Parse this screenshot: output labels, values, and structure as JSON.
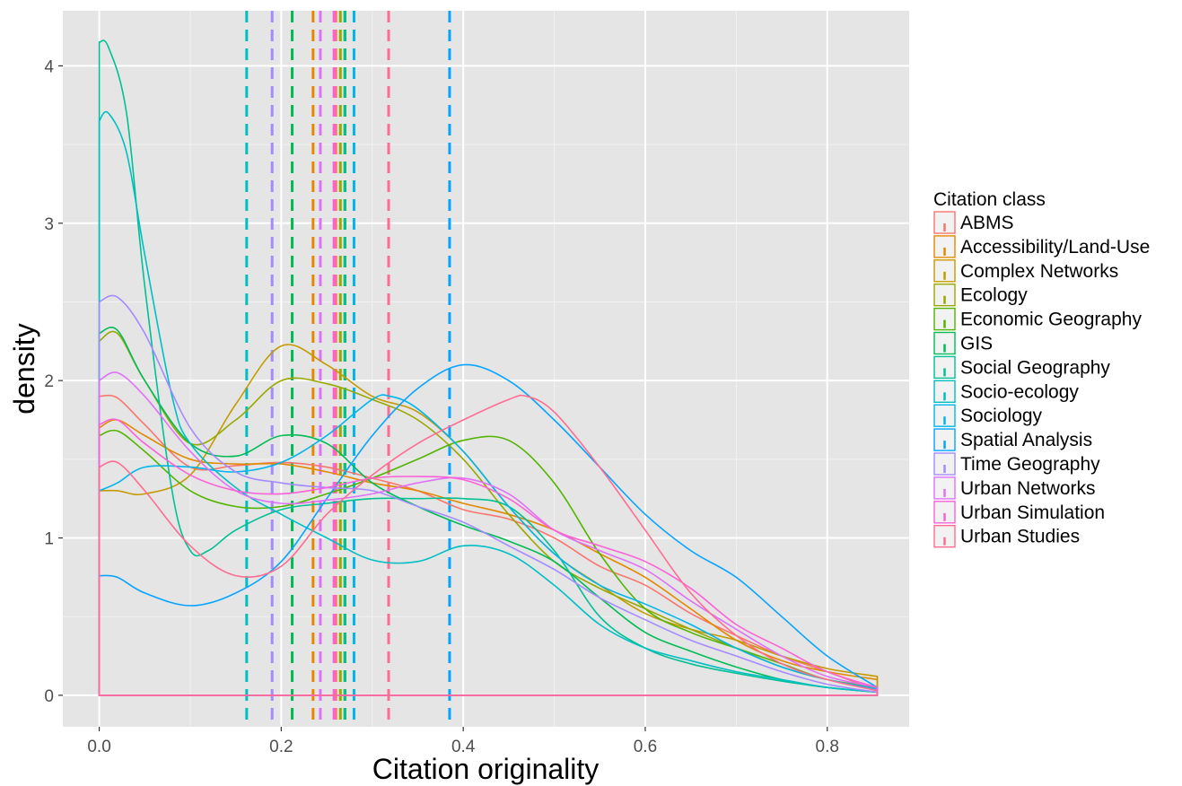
{
  "chart_data": {
    "type": "area",
    "kind": "density",
    "xlabel": "Citation originality",
    "ylabel": "density",
    "xlim": [
      -0.04,
      0.89
    ],
    "ylim": [
      -0.2,
      4.35
    ],
    "x_ticks": [
      {
        "value": 0.0,
        "label": "0.0"
      },
      {
        "value": 0.2,
        "label": "0.2"
      },
      {
        "value": 0.4,
        "label": "0.4"
      },
      {
        "value": 0.6,
        "label": "0.6"
      },
      {
        "value": 0.8,
        "label": "0.8"
      }
    ],
    "y_ticks": [
      {
        "value": 0,
        "label": "0"
      },
      {
        "value": 1,
        "label": "1"
      },
      {
        "value": 2,
        "label": "2"
      },
      {
        "value": 3,
        "label": "3"
      },
      {
        "value": 4,
        "label": "4"
      }
    ],
    "grid": true,
    "panel_background": "#e5e5e5",
    "legend": {
      "title": "Citation class",
      "position": "right"
    },
    "series": [
      {
        "name": "ABMS",
        "color": "#F8766D",
        "mean": 0.26,
        "points": [
          [
            0,
            1.9
          ],
          [
            0.02,
            1.89
          ],
          [
            0.05,
            1.72
          ],
          [
            0.1,
            1.45
          ],
          [
            0.15,
            1.46
          ],
          [
            0.2,
            1.48
          ],
          [
            0.25,
            1.45
          ],
          [
            0.3,
            1.38
          ],
          [
            0.35,
            1.3
          ],
          [
            0.4,
            1.18
          ],
          [
            0.45,
            1.12
          ],
          [
            0.5,
            1.0
          ],
          [
            0.55,
            0.82
          ],
          [
            0.6,
            0.7
          ],
          [
            0.65,
            0.52
          ],
          [
            0.7,
            0.38
          ],
          [
            0.75,
            0.25
          ],
          [
            0.8,
            0.15
          ],
          [
            0.855,
            0.03
          ]
        ]
      },
      {
        "name": "Accessibility/Land-Use",
        "color": "#E38900",
        "mean": 0.235,
        "points": [
          [
            0,
            1.7
          ],
          [
            0.02,
            1.75
          ],
          [
            0.05,
            1.65
          ],
          [
            0.1,
            1.5
          ],
          [
            0.15,
            1.47
          ],
          [
            0.2,
            1.47
          ],
          [
            0.25,
            1.42
          ],
          [
            0.3,
            1.35
          ],
          [
            0.35,
            1.3
          ],
          [
            0.4,
            1.22
          ],
          [
            0.45,
            1.15
          ],
          [
            0.5,
            1.05
          ],
          [
            0.55,
            0.9
          ],
          [
            0.6,
            0.75
          ],
          [
            0.65,
            0.55
          ],
          [
            0.7,
            0.35
          ],
          [
            0.75,
            0.22
          ],
          [
            0.8,
            0.15
          ],
          [
            0.855,
            0.1
          ]
        ]
      },
      {
        "name": "Complex Networks",
        "color": "#C49A00",
        "mean": 0.27,
        "points": [
          [
            0,
            1.3
          ],
          [
            0.02,
            1.3
          ],
          [
            0.05,
            1.28
          ],
          [
            0.1,
            1.4
          ],
          [
            0.15,
            1.85
          ],
          [
            0.2,
            2.22
          ],
          [
            0.25,
            2.1
          ],
          [
            0.3,
            1.9
          ],
          [
            0.35,
            1.8
          ],
          [
            0.4,
            1.55
          ],
          [
            0.45,
            1.2
          ],
          [
            0.5,
            0.9
          ],
          [
            0.55,
            0.7
          ],
          [
            0.6,
            0.52
          ],
          [
            0.65,
            0.42
          ],
          [
            0.7,
            0.35
          ],
          [
            0.75,
            0.25
          ],
          [
            0.8,
            0.17
          ],
          [
            0.855,
            0.12
          ]
        ]
      },
      {
        "name": "Ecology",
        "color": "#99A800",
        "mean": 0.265,
        "points": [
          [
            0,
            2.25
          ],
          [
            0.02,
            2.3
          ],
          [
            0.05,
            2.0
          ],
          [
            0.1,
            1.6
          ],
          [
            0.15,
            1.75
          ],
          [
            0.2,
            2.0
          ],
          [
            0.25,
            1.98
          ],
          [
            0.3,
            1.88
          ],
          [
            0.35,
            1.75
          ],
          [
            0.4,
            1.5
          ],
          [
            0.45,
            1.15
          ],
          [
            0.5,
            0.85
          ],
          [
            0.55,
            0.68
          ],
          [
            0.6,
            0.55
          ],
          [
            0.65,
            0.42
          ],
          [
            0.7,
            0.3
          ],
          [
            0.75,
            0.18
          ],
          [
            0.8,
            0.1
          ],
          [
            0.855,
            0.05
          ]
        ]
      },
      {
        "name": "Economic Geography",
        "color": "#53B400",
        "mean": 0.27,
        "points": [
          [
            0,
            1.65
          ],
          [
            0.02,
            1.68
          ],
          [
            0.05,
            1.55
          ],
          [
            0.1,
            1.3
          ],
          [
            0.15,
            1.2
          ],
          [
            0.2,
            1.2
          ],
          [
            0.25,
            1.28
          ],
          [
            0.3,
            1.38
          ],
          [
            0.35,
            1.5
          ],
          [
            0.4,
            1.62
          ],
          [
            0.45,
            1.62
          ],
          [
            0.5,
            1.35
          ],
          [
            0.55,
            0.9
          ],
          [
            0.6,
            0.55
          ],
          [
            0.65,
            0.4
          ],
          [
            0.7,
            0.3
          ],
          [
            0.75,
            0.2
          ],
          [
            0.8,
            0.1
          ],
          [
            0.855,
            0.05
          ]
        ]
      },
      {
        "name": "GIS",
        "color": "#00BC56",
        "mean": 0.212,
        "points": [
          [
            0,
            2.3
          ],
          [
            0.02,
            2.32
          ],
          [
            0.05,
            2.0
          ],
          [
            0.1,
            1.6
          ],
          [
            0.15,
            1.52
          ],
          [
            0.2,
            1.65
          ],
          [
            0.25,
            1.6
          ],
          [
            0.3,
            1.35
          ],
          [
            0.35,
            1.2
          ],
          [
            0.4,
            1.08
          ],
          [
            0.45,
            0.98
          ],
          [
            0.5,
            0.85
          ],
          [
            0.55,
            0.62
          ],
          [
            0.6,
            0.4
          ],
          [
            0.65,
            0.28
          ],
          [
            0.7,
            0.18
          ],
          [
            0.75,
            0.1
          ],
          [
            0.8,
            0.05
          ],
          [
            0.855,
            0.02
          ]
        ]
      },
      {
        "name": "Social Geography",
        "color": "#00C094",
        "mean": 0.27,
        "points": [
          [
            0,
            4.15
          ],
          [
            0.01,
            4.12
          ],
          [
            0.03,
            3.7
          ],
          [
            0.05,
            2.6
          ],
          [
            0.08,
            1.3
          ],
          [
            0.1,
            0.92
          ],
          [
            0.12,
            0.92
          ],
          [
            0.15,
            1.05
          ],
          [
            0.2,
            1.18
          ],
          [
            0.25,
            1.22
          ],
          [
            0.3,
            1.25
          ],
          [
            0.35,
            1.25
          ],
          [
            0.4,
            1.25
          ],
          [
            0.45,
            1.2
          ],
          [
            0.5,
            0.92
          ],
          [
            0.55,
            0.5
          ],
          [
            0.6,
            0.3
          ],
          [
            0.65,
            0.2
          ],
          [
            0.7,
            0.14
          ],
          [
            0.75,
            0.09
          ],
          [
            0.8,
            0.05
          ],
          [
            0.855,
            0.02
          ]
        ]
      },
      {
        "name": "Socio-ecology",
        "color": "#00BFC4",
        "mean": 0.162,
        "points": [
          [
            0,
            3.65
          ],
          [
            0.01,
            3.7
          ],
          [
            0.03,
            3.45
          ],
          [
            0.05,
            2.8
          ],
          [
            0.08,
            1.9
          ],
          [
            0.1,
            1.6
          ],
          [
            0.15,
            1.32
          ],
          [
            0.2,
            1.15
          ],
          [
            0.25,
            1.0
          ],
          [
            0.3,
            0.86
          ],
          [
            0.35,
            0.85
          ],
          [
            0.4,
            0.95
          ],
          [
            0.45,
            0.9
          ],
          [
            0.5,
            0.7
          ],
          [
            0.55,
            0.45
          ],
          [
            0.6,
            0.3
          ],
          [
            0.65,
            0.22
          ],
          [
            0.7,
            0.15
          ],
          [
            0.75,
            0.1
          ],
          [
            0.8,
            0.05
          ],
          [
            0.855,
            0.02
          ]
        ]
      },
      {
        "name": "Sociology",
        "color": "#00B6EB",
        "mean": 0.28,
        "points": [
          [
            0,
            1.3
          ],
          [
            0.02,
            1.35
          ],
          [
            0.05,
            1.45
          ],
          [
            0.1,
            1.45
          ],
          [
            0.15,
            1.42
          ],
          [
            0.2,
            1.48
          ],
          [
            0.25,
            1.65
          ],
          [
            0.3,
            1.88
          ],
          [
            0.32,
            1.9
          ],
          [
            0.35,
            1.82
          ],
          [
            0.4,
            1.55
          ],
          [
            0.45,
            1.2
          ],
          [
            0.5,
            0.9
          ],
          [
            0.55,
            0.7
          ],
          [
            0.6,
            0.58
          ],
          [
            0.65,
            0.45
          ],
          [
            0.7,
            0.3
          ],
          [
            0.75,
            0.18
          ],
          [
            0.8,
            0.1
          ],
          [
            0.855,
            0.04
          ]
        ]
      },
      {
        "name": "Spatial Analysis",
        "color": "#06A4FF",
        "mean": 0.385,
        "points": [
          [
            0,
            0.76
          ],
          [
            0.02,
            0.75
          ],
          [
            0.05,
            0.65
          ],
          [
            0.1,
            0.57
          ],
          [
            0.15,
            0.65
          ],
          [
            0.2,
            0.85
          ],
          [
            0.25,
            1.25
          ],
          [
            0.3,
            1.65
          ],
          [
            0.35,
            1.95
          ],
          [
            0.4,
            2.1
          ],
          [
            0.45,
            2.0
          ],
          [
            0.5,
            1.75
          ],
          [
            0.55,
            1.45
          ],
          [
            0.6,
            1.15
          ],
          [
            0.65,
            0.92
          ],
          [
            0.7,
            0.75
          ],
          [
            0.75,
            0.5
          ],
          [
            0.8,
            0.25
          ],
          [
            0.855,
            0.05
          ]
        ]
      },
      {
        "name": "Time Geography",
        "color": "#A58AFF",
        "mean": 0.19,
        "points": [
          [
            0,
            2.5
          ],
          [
            0.02,
            2.53
          ],
          [
            0.05,
            2.3
          ],
          [
            0.1,
            1.7
          ],
          [
            0.15,
            1.42
          ],
          [
            0.2,
            1.35
          ],
          [
            0.25,
            1.32
          ],
          [
            0.3,
            1.3
          ],
          [
            0.35,
            1.2
          ],
          [
            0.4,
            1.1
          ],
          [
            0.45,
            0.95
          ],
          [
            0.5,
            0.8
          ],
          [
            0.55,
            0.62
          ],
          [
            0.6,
            0.48
          ],
          [
            0.65,
            0.35
          ],
          [
            0.7,
            0.25
          ],
          [
            0.75,
            0.15
          ],
          [
            0.8,
            0.07
          ],
          [
            0.855,
            0.02
          ]
        ]
      },
      {
        "name": "Urban Networks",
        "color": "#DF70F8",
        "mean": 0.243,
        "points": [
          [
            0,
            2.0
          ],
          [
            0.02,
            2.05
          ],
          [
            0.05,
            1.9
          ],
          [
            0.1,
            1.55
          ],
          [
            0.15,
            1.3
          ],
          [
            0.2,
            1.22
          ],
          [
            0.25,
            1.24
          ],
          [
            0.3,
            1.28
          ],
          [
            0.35,
            1.35
          ],
          [
            0.4,
            1.38
          ],
          [
            0.45,
            1.28
          ],
          [
            0.5,
            1.05
          ],
          [
            0.55,
            0.92
          ],
          [
            0.6,
            0.8
          ],
          [
            0.65,
            0.6
          ],
          [
            0.7,
            0.42
          ],
          [
            0.75,
            0.25
          ],
          [
            0.8,
            0.12
          ],
          [
            0.855,
            0.05
          ]
        ]
      },
      {
        "name": "Urban Simulation",
        "color": "#FB61D7",
        "mean": 0.258,
        "points": [
          [
            0,
            1.72
          ],
          [
            0.02,
            1.75
          ],
          [
            0.05,
            1.6
          ],
          [
            0.1,
            1.4
          ],
          [
            0.15,
            1.3
          ],
          [
            0.2,
            1.28
          ],
          [
            0.25,
            1.32
          ],
          [
            0.3,
            1.38
          ],
          [
            0.35,
            1.39
          ],
          [
            0.4,
            1.37
          ],
          [
            0.45,
            1.25
          ],
          [
            0.5,
            1.05
          ],
          [
            0.55,
            0.95
          ],
          [
            0.6,
            0.85
          ],
          [
            0.65,
            0.68
          ],
          [
            0.7,
            0.45
          ],
          [
            0.75,
            0.3
          ],
          [
            0.8,
            0.15
          ],
          [
            0.855,
            0.05
          ]
        ]
      },
      {
        "name": "Urban Studies",
        "color": "#FF6C91",
        "mean": 0.318,
        "points": [
          [
            0,
            1.45
          ],
          [
            0.02,
            1.48
          ],
          [
            0.05,
            1.3
          ],
          [
            0.1,
            0.95
          ],
          [
            0.15,
            0.76
          ],
          [
            0.2,
            0.82
          ],
          [
            0.25,
            1.15
          ],
          [
            0.3,
            1.4
          ],
          [
            0.35,
            1.6
          ],
          [
            0.4,
            1.75
          ],
          [
            0.45,
            1.88
          ],
          [
            0.47,
            1.9
          ],
          [
            0.5,
            1.8
          ],
          [
            0.55,
            1.45
          ],
          [
            0.6,
            1.05
          ],
          [
            0.65,
            0.65
          ],
          [
            0.7,
            0.38
          ],
          [
            0.75,
            0.2
          ],
          [
            0.8,
            0.1
          ],
          [
            0.855,
            0.03
          ]
        ]
      }
    ]
  }
}
